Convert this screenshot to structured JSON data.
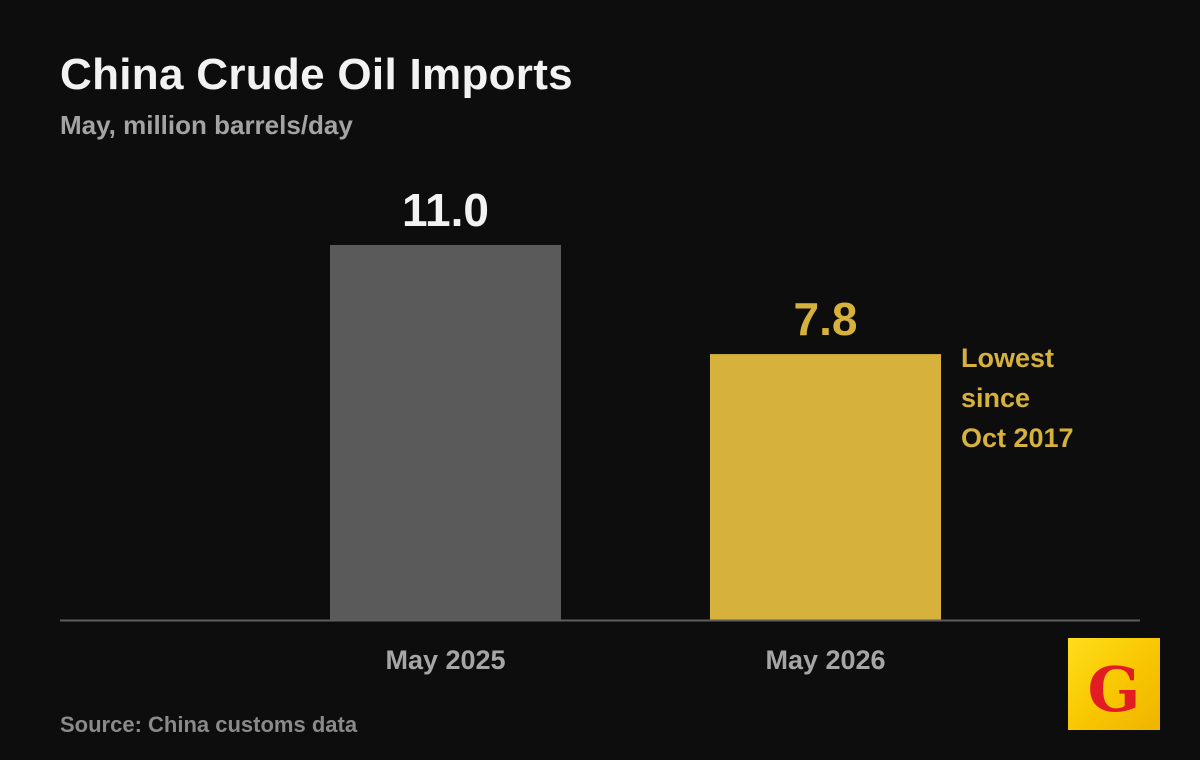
{
  "title": "China Crude Oil Imports",
  "subtitle": "May, million barrels/day",
  "source": "Source: China customs data",
  "logo_letter": "G",
  "colors": {
    "background": "#0d0d0d",
    "bar_previous": "#5a5a5b",
    "bar_highlight": "#d6b23c",
    "value_previous": "#f2f2f2",
    "value_highlight": "#d6b23c",
    "axis_label": "#a6a6a6",
    "baseline": "#5e5e5e",
    "logo_background": "#f7c600",
    "logo_letter": "#e31b23"
  },
  "chart_data": {
    "type": "bar",
    "categories": [
      "May 2025",
      "May 2026"
    ],
    "values": [
      11.0,
      7.8
    ],
    "data_labels": [
      "11.0",
      "7.8"
    ],
    "highlight_index": 1,
    "annotation": {
      "category": "May 2026",
      "lines": [
        "Lowest",
        "since",
        "Oct 2017"
      ]
    },
    "title": "China Crude Oil Imports",
    "subtitle": "May, million barrels/day",
    "xlabel": "",
    "ylabel": "",
    "ylim": [
      0,
      11.0
    ],
    "grid": false,
    "legend": "none"
  }
}
